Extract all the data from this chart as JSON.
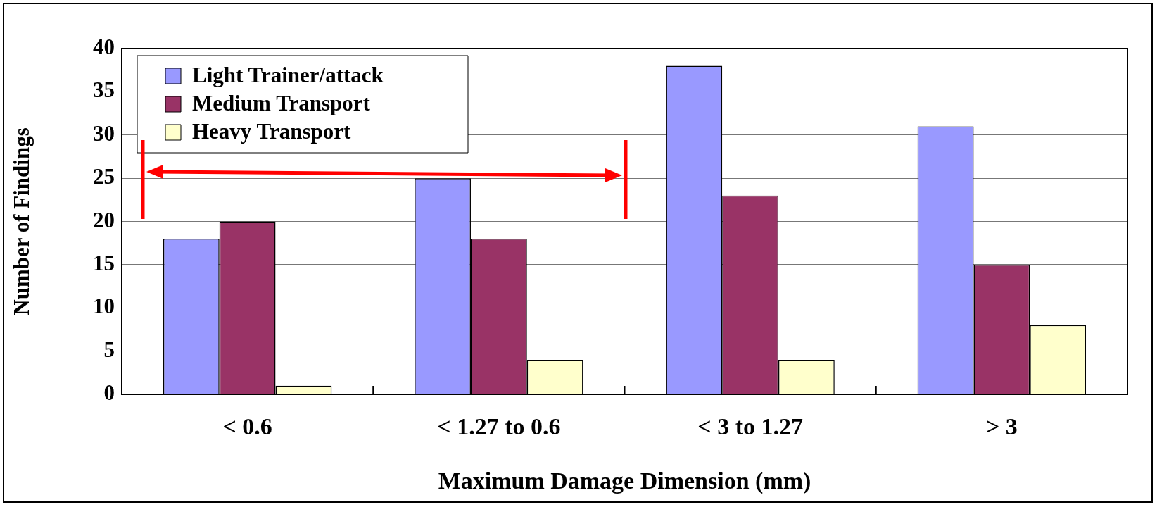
{
  "chart_data": {
    "type": "bar",
    "xlabel": "Maximum Damage Dimension (mm)",
    "ylabel": "Number of Findings",
    "categories": [
      "< 0.6",
      "< 1.27 to 0.6",
      "< 3 to 1.27",
      "> 3"
    ],
    "series": [
      {
        "name": "Light Trainer/attack",
        "color": "#9999ff",
        "values": [
          18,
          25,
          38,
          31
        ]
      },
      {
        "name": "Medium Transport",
        "color": "#993366",
        "values": [
          20,
          18,
          23,
          15
        ]
      },
      {
        "name": "Heavy Transport",
        "color": "#ffffcc",
        "values": [
          1,
          4,
          4,
          8
        ]
      }
    ],
    "ylim": [
      0,
      40
    ],
    "yticks": [
      0,
      5,
      10,
      15,
      20,
      25,
      30,
      35,
      40
    ],
    "grid": "y",
    "legend": "top left"
  }
}
